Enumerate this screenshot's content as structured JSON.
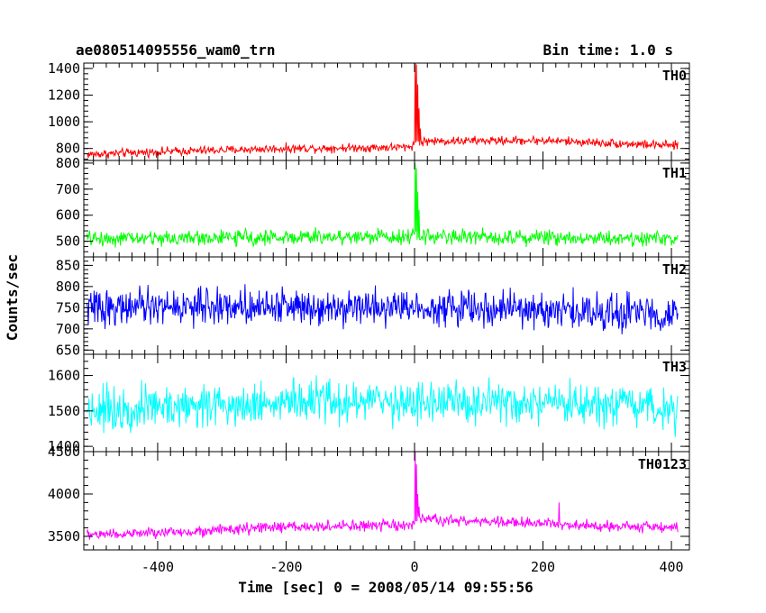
{
  "chart_data": {
    "type": "line",
    "title_left": "ae080514095556_wam0_trn",
    "title_right": "Bin time: 1.0 s",
    "xlabel": "Time [sec] 0 = 2008/05/14 09:55:56",
    "ylabel": "Counts/sec",
    "xlim": [
      -515,
      428
    ],
    "x_ticks": [
      -400,
      -200,
      0,
      200,
      400
    ],
    "x_range": [
      -510,
      410
    ],
    "panels": [
      {
        "name": "TH0",
        "color": "#ff0000",
        "ylim": [
          710,
          1440
        ],
        "y_ticks": [
          800,
          1000,
          1200,
          1400
        ],
        "segments": [
          [
            -510,
            755
          ],
          [
            -400,
            775
          ],
          [
            -200,
            800
          ],
          [
            -10,
            810
          ],
          [
            2,
            840
          ],
          [
            20,
            855
          ],
          [
            200,
            860
          ],
          [
            410,
            820
          ]
        ],
        "noise": 28,
        "peaks": [
          {
            "x": 1,
            "y": 1440
          },
          {
            "x": 3,
            "y": 1430
          },
          {
            "x": 5,
            "y": 1280
          },
          {
            "x": 7,
            "y": 1100
          },
          {
            "x": 9,
            "y": 950
          }
        ]
      },
      {
        "name": "TH1",
        "color": "#00ff00",
        "ylim": [
          440,
          810
        ],
        "y_ticks": [
          500,
          600,
          700,
          800
        ],
        "segments": [
          [
            -510,
            510
          ],
          [
            -200,
            515
          ],
          [
            0,
            520
          ],
          [
            410,
            510
          ]
        ],
        "noise": 25,
        "peaks": [
          {
            "x": 1,
            "y": 800
          },
          {
            "x": 3,
            "y": 780
          },
          {
            "x": 5,
            "y": 690
          },
          {
            "x": 7,
            "y": 620
          }
        ]
      },
      {
        "name": "TH2",
        "color": "#0000ff",
        "ylim": [
          640,
          870
        ],
        "y_ticks": [
          650,
          700,
          750,
          800,
          850
        ],
        "segments": [
          [
            -510,
            750
          ],
          [
            -200,
            755
          ],
          [
            0,
            752
          ],
          [
            410,
            735
          ]
        ],
        "noise": 36,
        "peaks": []
      },
      {
        "name": "TH3",
        "color": "#00ffff",
        "ylim": [
          1385,
          1660
        ],
        "y_ticks": [
          1400,
          1500,
          1600
        ],
        "segments": [
          [
            -510,
            1505
          ],
          [
            -200,
            1525
          ],
          [
            0,
            1525
          ],
          [
            410,
            1505
          ]
        ],
        "noise": 52,
        "peaks": []
      },
      {
        "name": "TH0123",
        "color": "#ff00ff",
        "ylim": [
          3340,
          4500
        ],
        "y_ticks": [
          3500,
          4000,
          4500
        ],
        "segments": [
          [
            -510,
            3520
          ],
          [
            -400,
            3540
          ],
          [
            -200,
            3610
          ],
          [
            -5,
            3630
          ],
          [
            5,
            3700
          ],
          [
            200,
            3650
          ],
          [
            410,
            3600
          ]
        ],
        "noise": 55,
        "peaks": [
          {
            "x": 1,
            "y": 4500
          },
          {
            "x": 3,
            "y": 4350
          },
          {
            "x": 5,
            "y": 4000
          },
          {
            "x": 7,
            "y": 3850
          },
          {
            "x": 225,
            "y": 3900
          }
        ]
      }
    ]
  }
}
